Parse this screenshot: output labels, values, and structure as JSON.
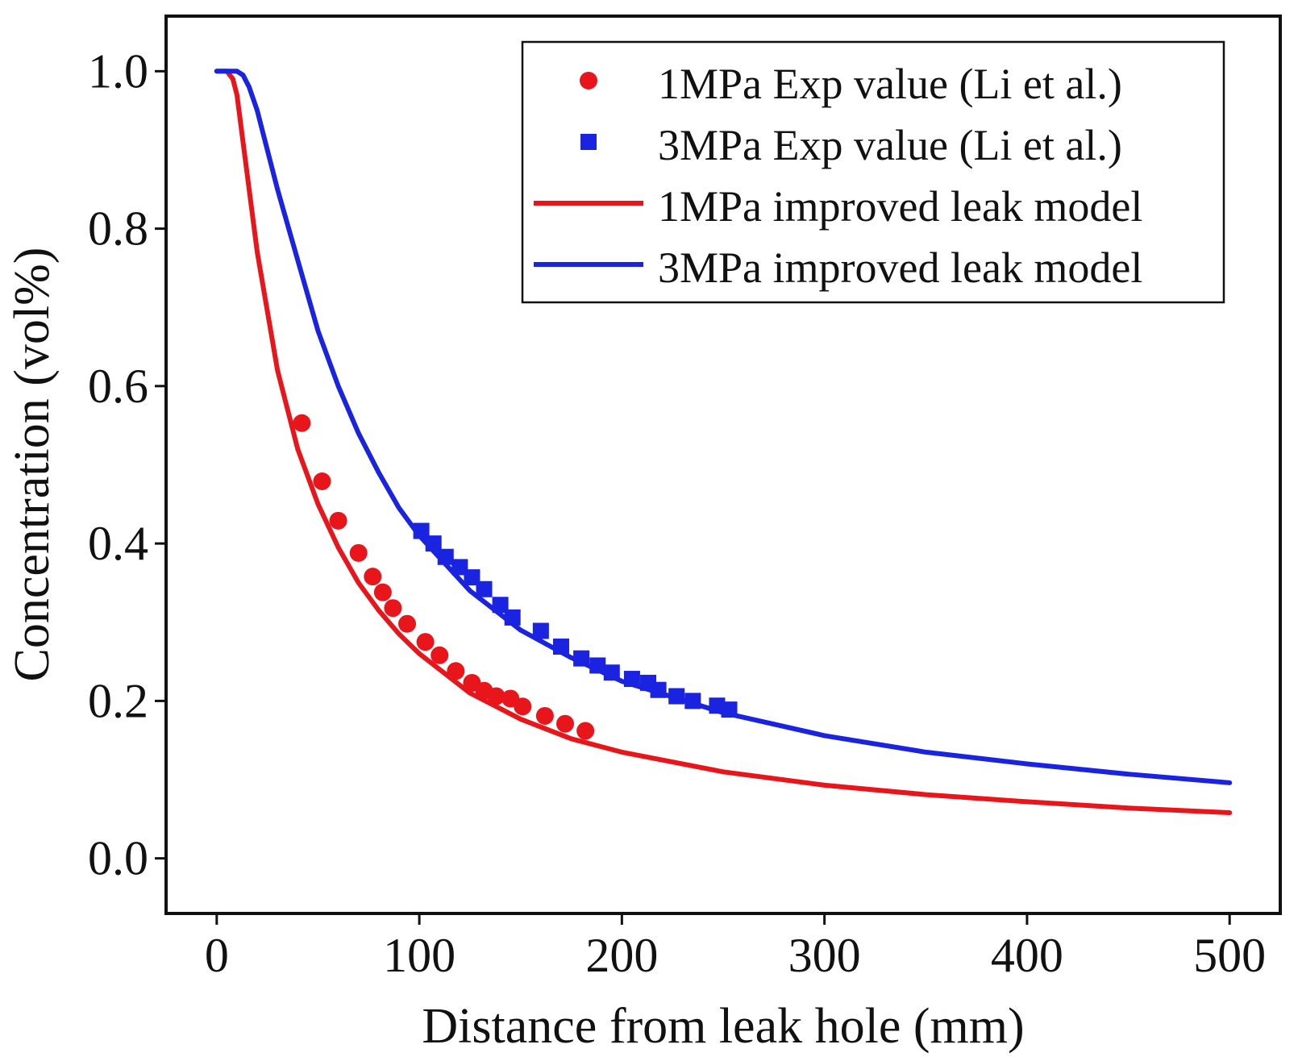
{
  "chart_data": {
    "type": "scatter",
    "title": "",
    "xlabel": "Distance from leak hole (mm)",
    "ylabel": "Concentration (vol%)",
    "xlim": [
      -25,
      525
    ],
    "ylim": [
      -0.07,
      1.07
    ],
    "xticks": [
      0,
      100,
      200,
      300,
      400,
      500
    ],
    "yticks": [
      0.0,
      0.2,
      0.4,
      0.6,
      0.8,
      1.0
    ],
    "xtick_labels": [
      "0",
      "100",
      "200",
      "300",
      "400",
      "500"
    ],
    "ytick_labels": [
      "0.0",
      "0.2",
      "0.4",
      "0.6",
      "0.8",
      "1.0"
    ],
    "legend_position": "top-right",
    "grid": false,
    "series": [
      {
        "name": "1MPa Exp value (Li et al.)",
        "kind": "scatter",
        "marker": "circle",
        "color": "#e8151b",
        "x": [
          42,
          52,
          60,
          70,
          77,
          82,
          87,
          94,
          103,
          110,
          118,
          126,
          132,
          138,
          145,
          151,
          162,
          172,
          182
        ],
        "y": [
          0.553,
          0.479,
          0.429,
          0.388,
          0.358,
          0.338,
          0.318,
          0.298,
          0.275,
          0.258,
          0.238,
          0.223,
          0.213,
          0.206,
          0.203,
          0.193,
          0.181,
          0.171,
          0.162
        ]
      },
      {
        "name": "3MPa Exp value (Li et al.)",
        "kind": "scatter",
        "marker": "square",
        "color": "#1a23e0",
        "x": [
          101,
          107,
          113,
          120,
          126,
          132,
          140,
          146,
          160,
          170,
          180,
          188,
          195,
          205,
          213,
          218,
          227,
          235,
          247,
          253
        ],
        "y": [
          0.416,
          0.4,
          0.383,
          0.37,
          0.357,
          0.342,
          0.322,
          0.306,
          0.289,
          0.269,
          0.254,
          0.245,
          0.236,
          0.228,
          0.223,
          0.214,
          0.206,
          0.2,
          0.194,
          0.189
        ]
      },
      {
        "name": "1MPa improved leak model",
        "kind": "line",
        "color": "#e8151b",
        "x": [
          0,
          5,
          8,
          10,
          15,
          20,
          30,
          40,
          50,
          60,
          70,
          80,
          90,
          100,
          125,
          150,
          175,
          200,
          250,
          300,
          350,
          400,
          450,
          500
        ],
        "y": [
          1.0,
          1.0,
          0.99,
          0.97,
          0.87,
          0.77,
          0.62,
          0.52,
          0.45,
          0.395,
          0.35,
          0.315,
          0.285,
          0.26,
          0.21,
          0.177,
          0.152,
          0.135,
          0.11,
          0.093,
          0.081,
          0.072,
          0.064,
          0.058
        ]
      },
      {
        "name": "3MPa improved leak model",
        "kind": "line",
        "color": "#1a23e0",
        "x": [
          0,
          5,
          10,
          13,
          16,
          20,
          25,
          30,
          40,
          50,
          60,
          70,
          80,
          90,
          100,
          125,
          150,
          175,
          200,
          250,
          300,
          350,
          400,
          450,
          500
        ],
        "y": [
          1.0,
          1.0,
          1.0,
          0.995,
          0.98,
          0.95,
          0.9,
          0.85,
          0.76,
          0.67,
          0.6,
          0.54,
          0.49,
          0.445,
          0.41,
          0.34,
          0.29,
          0.255,
          0.225,
          0.185,
          0.156,
          0.135,
          0.12,
          0.107,
          0.096
        ]
      }
    ]
  }
}
